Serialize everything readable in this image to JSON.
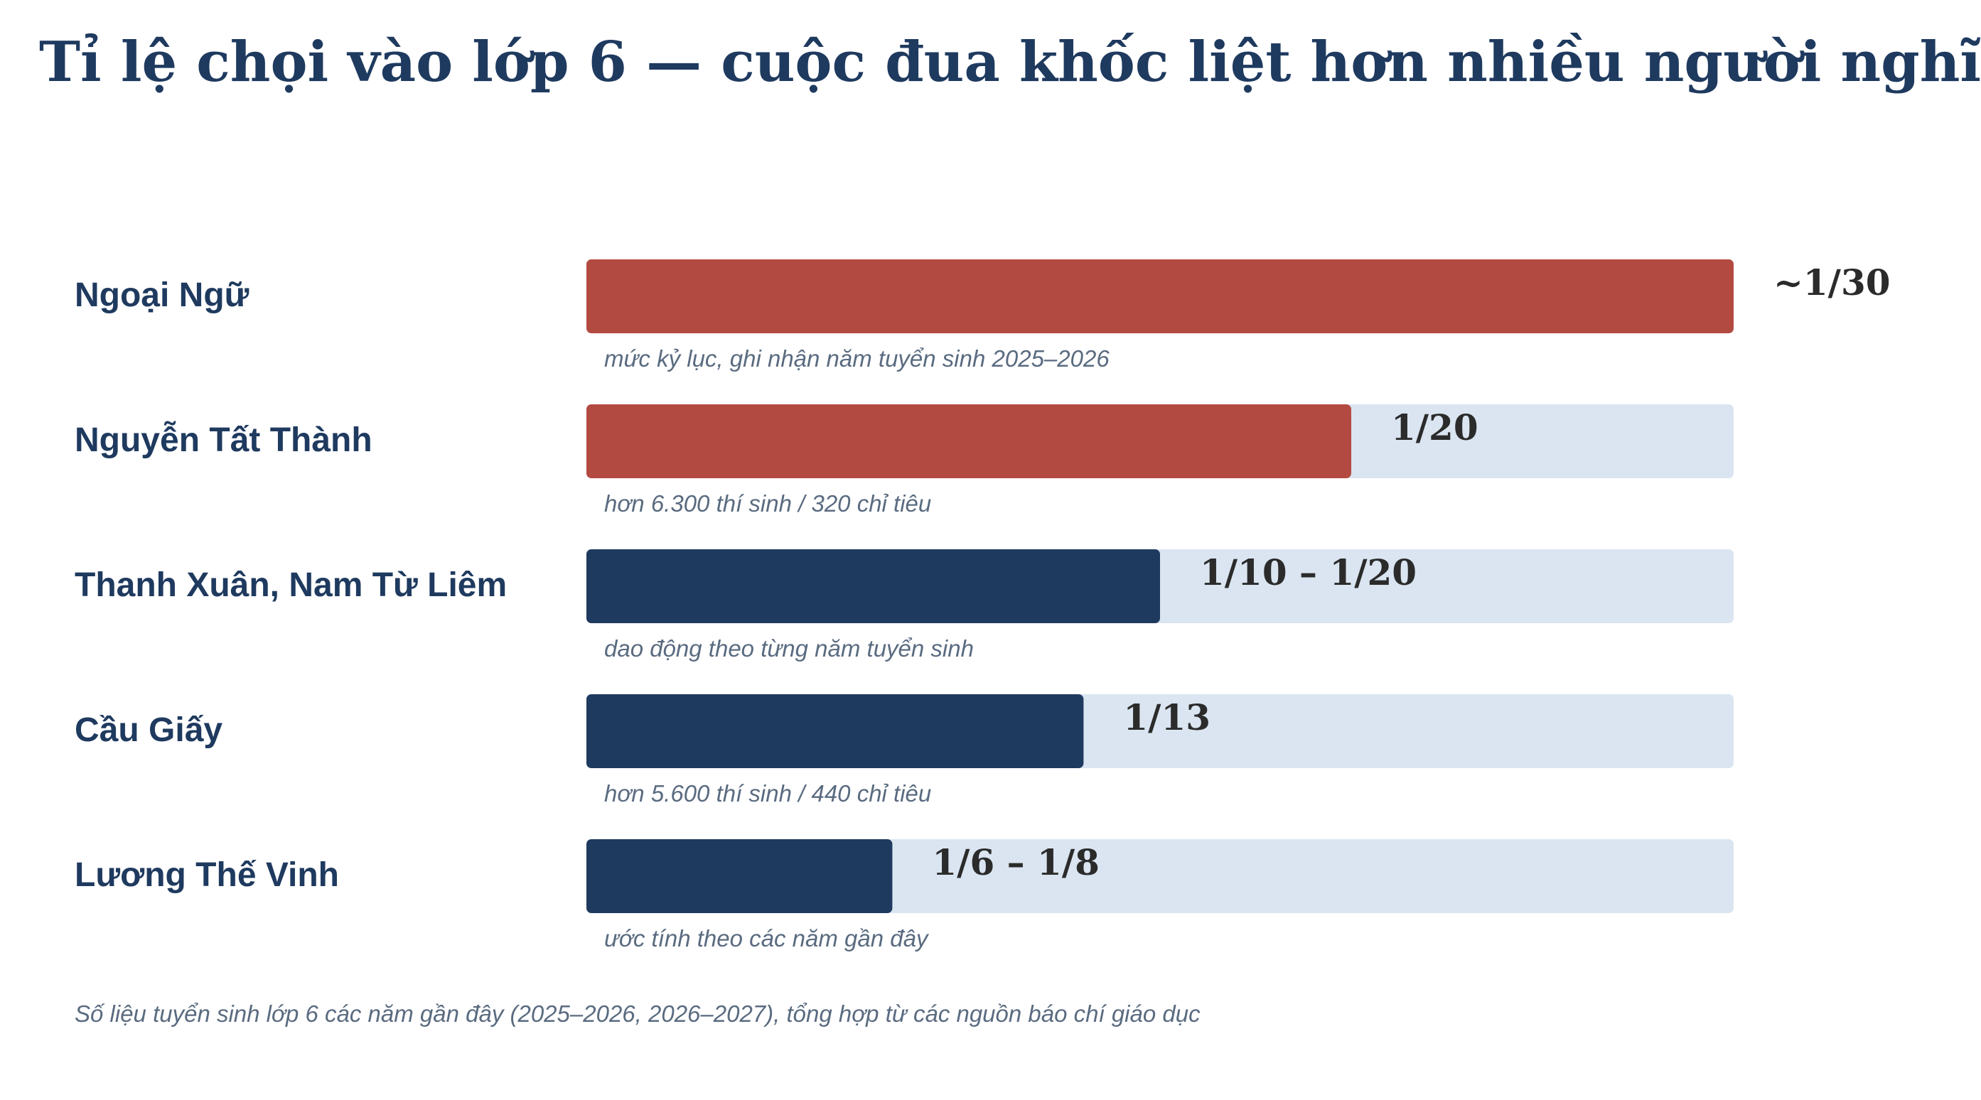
{
  "chart_data": {
    "type": "bar",
    "orientation": "horizontal",
    "title": "Tỉ lệ chọi vào lớp 6 — cuộc đua khốc liệt hơn nhiều người nghĩ",
    "source_note": "Số liệu tuyển sinh lớp 6 các năm gần đây (2025–2026, 2026–2027), tổng hợp từ các nguồn báo chí giáo dục",
    "xlim": [
      0,
      30
    ],
    "grid": false,
    "legend": "none",
    "categories": [
      "Ngoại Ngữ",
      "Nguyễn Tất Thành",
      "Thanh Xuân, Nam Từ Liêm",
      "Cầu Giấy",
      "Lương Thế Vinh"
    ],
    "values": [
      30,
      20,
      15,
      13,
      8
    ],
    "ratio_labels": [
      "~1/30",
      "1/20",
      "1/10 – 1/20",
      "1/13",
      "1/6 – 1/8"
    ],
    "notes": [
      "mức kỷ lục, ghi nhận năm tuyển sinh 2025–2026",
      "hơn 6.300 thí sinh / 320 chỉ tiêu",
      "dao động theo từng năm tuyển sinh",
      "hơn 5.600 thí sinh / 440 chỉ tiêu",
      "ước tính theo các năm gần đây"
    ],
    "bar_colors": [
      "#b34a41",
      "#b34a41",
      "#1f3a5f",
      "#1f3a5f",
      "#1f3a5f"
    ],
    "track_color": "#dae5f1",
    "label_color": "#1f3a5f",
    "value_label_color": "#2b2b2b",
    "note_color": "#5a6b80"
  }
}
